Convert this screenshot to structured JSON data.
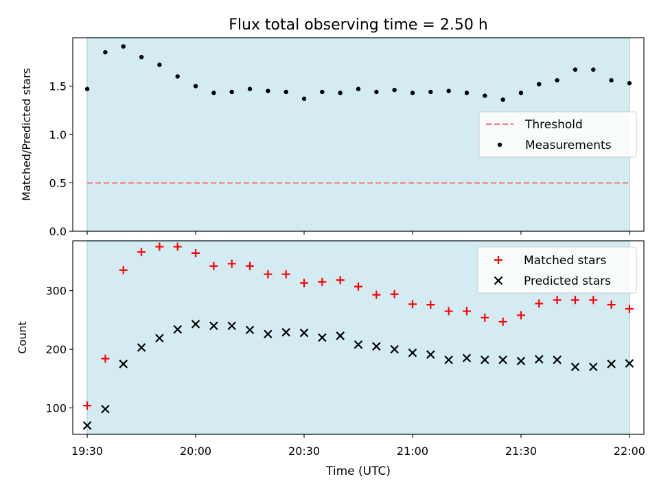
{
  "title": "Flux total observing time = 2.50 h",
  "colors": {
    "shade": "#add8e6",
    "threshold": "#f08080",
    "matched": "#ff0000",
    "predicted": "#000000",
    "measurement": "#000000"
  },
  "x_axis": {
    "label": "Time (UTC)",
    "ticks": [
      "19:30",
      "20:00",
      "20:30",
      "21:00",
      "21:30",
      "22:00"
    ],
    "tick_minutes": [
      1170,
      1200,
      1230,
      1260,
      1290,
      1320
    ],
    "range": [
      "19:26",
      "22:04"
    ]
  },
  "chart_data": [
    {
      "type": "scatter",
      "panel": "top",
      "ylabel": "Matched/Predicted stars",
      "ylim": [
        0,
        2
      ],
      "yticks": [
        "0.0",
        "0.5",
        "1.0",
        "1.5"
      ],
      "ytick_values": [
        0,
        0.5,
        1.0,
        1.5
      ],
      "shaded_span": [
        "19:30",
        "22:00"
      ],
      "threshold": {
        "name": "Threshold",
        "value": 0.5
      },
      "legend": {
        "position": "right",
        "entries": [
          "Threshold",
          "Measurements"
        ]
      },
      "series": [
        {
          "name": "Measurements",
          "x": [
            "19:30",
            "19:35",
            "19:40",
            "19:45",
            "19:50",
            "19:55",
            "20:00",
            "20:05",
            "20:10",
            "20:15",
            "20:20",
            "20:25",
            "20:30",
            "20:35",
            "20:40",
            "20:45",
            "20:50",
            "20:55",
            "21:00",
            "21:05",
            "21:10",
            "21:15",
            "21:20",
            "21:25",
            "21:30",
            "21:35",
            "21:40",
            "21:45",
            "21:50",
            "21:55",
            "22:00"
          ],
          "y": [
            1.47,
            1.85,
            1.91,
            1.8,
            1.72,
            1.6,
            1.5,
            1.43,
            1.44,
            1.47,
            1.45,
            1.44,
            1.37,
            1.44,
            1.43,
            1.47,
            1.44,
            1.46,
            1.43,
            1.44,
            1.45,
            1.43,
            1.4,
            1.36,
            1.43,
            1.52,
            1.56,
            1.67,
            1.67,
            1.56,
            1.53
          ]
        }
      ]
    },
    {
      "type": "scatter",
      "panel": "bottom",
      "ylabel": "Count",
      "ylim": [
        55,
        385
      ],
      "yticks": [
        "100",
        "200",
        "300"
      ],
      "ytick_values": [
        100,
        200,
        300
      ],
      "shaded_span": [
        "19:30",
        "22:00"
      ],
      "legend": {
        "position": "top-right",
        "entries": [
          "Matched stars",
          "Predicted stars"
        ]
      },
      "series": [
        {
          "name": "Matched stars",
          "marker": "plus",
          "x": [
            "19:30",
            "19:35",
            "19:40",
            "19:45",
            "19:50",
            "19:55",
            "20:00",
            "20:05",
            "20:10",
            "20:15",
            "20:20",
            "20:25",
            "20:30",
            "20:35",
            "20:40",
            "20:45",
            "20:50",
            "20:55",
            "21:00",
            "21:05",
            "21:10",
            "21:15",
            "21:20",
            "21:25",
            "21:30",
            "21:35",
            "21:40",
            "21:45",
            "21:50",
            "21:55",
            "22:00"
          ],
          "y": [
            104,
            184,
            335,
            366,
            375,
            375,
            364,
            342,
            346,
            342,
            328,
            328,
            313,
            315,
            318,
            307,
            293,
            294,
            277,
            276,
            265,
            265,
            254,
            247,
            258,
            278,
            284,
            284,
            284,
            276,
            269
          ]
        },
        {
          "name": "Predicted stars",
          "marker": "x",
          "x": [
            "19:30",
            "19:35",
            "19:40",
            "19:45",
            "19:50",
            "19:55",
            "20:00",
            "20:05",
            "20:10",
            "20:15",
            "20:20",
            "20:25",
            "20:30",
            "20:35",
            "20:40",
            "20:45",
            "20:50",
            "20:55",
            "21:00",
            "21:05",
            "21:10",
            "21:15",
            "21:20",
            "21:25",
            "21:30",
            "21:35",
            "21:40",
            "21:45",
            "21:50",
            "21:55",
            "22:00"
          ],
          "y": [
            70,
            98,
            175,
            203,
            219,
            234,
            243,
            240,
            240,
            233,
            226,
            229,
            228,
            220,
            223,
            208,
            205,
            200,
            194,
            191,
            182,
            185,
            182,
            182,
            180,
            183,
            182,
            170,
            170,
            175,
            176
          ]
        }
      ]
    }
  ]
}
